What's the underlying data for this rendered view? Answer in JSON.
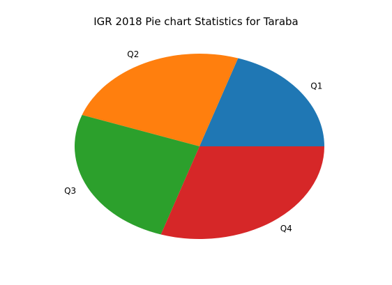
{
  "chart_data": {
    "type": "pie",
    "title": "IGR 2018 Pie chart Statistics for Taraba",
    "labels": [
      "Q1",
      "Q2",
      "Q3",
      "Q4"
    ],
    "values": [
      20.0,
      24.5,
      25.5,
      30.0
    ],
    "colors": [
      "#1f77b4",
      "#ff7f0e",
      "#2ca02c",
      "#d62728"
    ],
    "start_angle_deg": 0,
    "direction": "counterclockwise",
    "legend": "none"
  }
}
